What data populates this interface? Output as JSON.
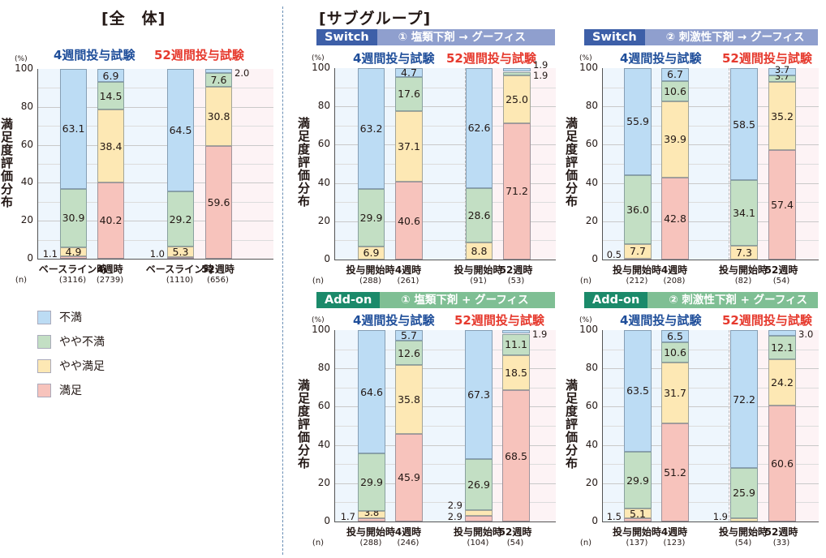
{
  "titles": {
    "overall": "[全　体]",
    "subgroup": "[サブグループ]"
  },
  "colors": {
    "dissatisfied": "#bcdcf4",
    "somewhat_dissatisfied": "#c3dfc4",
    "somewhat_satisfied": "#fde8b4",
    "satisfied": "#f7c3bc",
    "trial4_label": "#1f4e9a",
    "trial52_label": "#e63a2e",
    "switch_tag": "#3d5fa8",
    "switch_bar": "#8f9fce",
    "addon_tag": "#1b8a6a",
    "addon_bar": "#7fbf94"
  },
  "legend": [
    {
      "key": "dissatisfied",
      "label": "不満"
    },
    {
      "key": "somewhat_dissatisfied",
      "label": "やや不満"
    },
    {
      "key": "somewhat_satisfied",
      "label": "やや満足"
    },
    {
      "key": "satisfied",
      "label": "満足"
    }
  ],
  "axis": {
    "unit": "(%)",
    "ylabel": "満足度評価分布",
    "ticks": [
      "100",
      "80",
      "60",
      "40",
      "20",
      "0"
    ],
    "n_label": "(n)"
  },
  "chart_data": [
    {
      "type": "bar",
      "stacked": true,
      "title": "全体",
      "ylabel": "満足度評価分布",
      "ylim": [
        0,
        100
      ],
      "groups": [
        "4週間投与試験",
        "52週間投与試験"
      ],
      "categories": [
        "ベースライン時",
        "4週時",
        "ベースライン時",
        "52週時"
      ],
      "n": [
        "(3116)",
        "(2739)",
        "(1110)",
        "(656)"
      ],
      "series": [
        {
          "name": "満足",
          "values": [
            1.1,
            40.2,
            1.0,
            59.6
          ]
        },
        {
          "name": "やや満足",
          "values": [
            4.9,
            38.4,
            5.3,
            30.8
          ]
        },
        {
          "name": "やや不満",
          "values": [
            30.9,
            14.5,
            29.2,
            7.6
          ]
        },
        {
          "name": "不満",
          "values": [
            63.1,
            6.9,
            64.5,
            2.0
          ]
        }
      ]
    },
    {
      "type": "bar",
      "stacked": true,
      "title": "Switch ① 塩類下剤 → グーフィス",
      "ylabel": "満足度評価分布",
      "ylim": [
        0,
        100
      ],
      "groups": [
        "4週間投与試験",
        "52週間投与試験"
      ],
      "categories": [
        "投与開始時",
        "4週時",
        "投与開始時",
        "52週時"
      ],
      "n": [
        "(288)",
        "(261)",
        "(91)",
        "(53)"
      ],
      "series": [
        {
          "name": "満足",
          "values": [
            0,
            40.6,
            0,
            71.2
          ]
        },
        {
          "name": "やや満足",
          "values": [
            6.9,
            37.1,
            8.8,
            25.0
          ]
        },
        {
          "name": "やや不満",
          "values": [
            29.9,
            17.6,
            28.6,
            1.9
          ]
        },
        {
          "name": "不満",
          "values": [
            63.2,
            4.7,
            62.6,
            1.9
          ]
        }
      ]
    },
    {
      "type": "bar",
      "stacked": true,
      "title": "Switch ② 刺激性下剤 → グーフィス",
      "ylabel": "満足度評価分布",
      "ylim": [
        0,
        100
      ],
      "groups": [
        "4週間投与試験",
        "52週間投与試験"
      ],
      "categories": [
        "投与開始時",
        "4週時",
        "投与開始時",
        "52週時"
      ],
      "n": [
        "(212)",
        "(208)",
        "(82)",
        "(54)"
      ],
      "series": [
        {
          "name": "満足",
          "values": [
            0.5,
            42.8,
            0,
            57.4
          ]
        },
        {
          "name": "やや満足",
          "values": [
            7.7,
            39.9,
            7.3,
            35.2
          ]
        },
        {
          "name": "やや不満",
          "values": [
            36.0,
            10.6,
            34.1,
            3.7
          ]
        },
        {
          "name": "不満",
          "values": [
            55.9,
            6.7,
            58.5,
            3.7
          ]
        }
      ]
    },
    {
      "type": "bar",
      "stacked": true,
      "title": "Add-on ① 塩類下剤 + グーフィス",
      "ylabel": "満足度評価分布",
      "ylim": [
        0,
        100
      ],
      "groups": [
        "4週間投与試験",
        "52週間投与試験"
      ],
      "categories": [
        "投与開始時",
        "4週時",
        "投与開始時",
        "52週時"
      ],
      "n": [
        "(288)",
        "(246)",
        "(104)",
        "(54)"
      ],
      "series": [
        {
          "name": "満足",
          "values": [
            1.7,
            45.9,
            2.9,
            68.5
          ]
        },
        {
          "name": "やや満足",
          "values": [
            3.8,
            35.8,
            2.9,
            18.5
          ]
        },
        {
          "name": "やや不満",
          "values": [
            29.9,
            12.6,
            26.9,
            11.1
          ]
        },
        {
          "name": "不満",
          "values": [
            64.6,
            5.7,
            67.3,
            1.9
          ]
        }
      ]
    },
    {
      "type": "bar",
      "stacked": true,
      "title": "Add-on ② 刺激性下剤 + グーフィス",
      "ylabel": "満足度評価分布",
      "ylim": [
        0,
        100
      ],
      "groups": [
        "4週間投与試験",
        "52週間投与試験"
      ],
      "categories": [
        "投与開始時",
        "4週時",
        "投与開始時",
        "52週時"
      ],
      "n": [
        "(137)",
        "(123)",
        "(54)",
        "(33)"
      ],
      "series": [
        {
          "name": "満足",
          "values": [
            1.5,
            51.2,
            0,
            60.6
          ]
        },
        {
          "name": "やや満足",
          "values": [
            5.1,
            31.7,
            1.9,
            24.2
          ]
        },
        {
          "name": "やや不満",
          "values": [
            29.9,
            10.6,
            25.9,
            12.1
          ]
        },
        {
          "name": "不満",
          "values": [
            63.5,
            6.5,
            72.2,
            3.0
          ]
        }
      ]
    }
  ],
  "panels": [
    {
      "id": "overall",
      "banner": null,
      "trial4": "4週間投与試験",
      "trial52": "52週間投与試験",
      "x": [
        "ベースライン時",
        "4週時",
        "ベースライン時",
        "52週時"
      ],
      "n": [
        "(3116)",
        "(2739)",
        "(1110)",
        "(656)"
      ],
      "bars": [
        {
          "segs": [
            {
              "k": "satisfied",
              "v": 1.1,
              "t": "1.1",
              "out": "left"
            },
            {
              "k": "somewhat_satisfied",
              "v": 4.9,
              "t": "4.9"
            },
            {
              "k": "somewhat_dissatisfied",
              "v": 30.9,
              "t": "30.9"
            },
            {
              "k": "dissatisfied",
              "v": 63.1,
              "t": "63.1"
            }
          ]
        },
        {
          "segs": [
            {
              "k": "satisfied",
              "v": 40.2,
              "t": "40.2"
            },
            {
              "k": "somewhat_satisfied",
              "v": 38.4,
              "t": "38.4"
            },
            {
              "k": "somewhat_dissatisfied",
              "v": 14.5,
              "t": "14.5"
            },
            {
              "k": "dissatisfied",
              "v": 6.9,
              "t": "6.9"
            }
          ]
        },
        {
          "segs": [
            {
              "k": "satisfied",
              "v": 1.0,
              "t": "1.0",
              "out": "left"
            },
            {
              "k": "somewhat_satisfied",
              "v": 5.3,
              "t": "5.3"
            },
            {
              "k": "somewhat_dissatisfied",
              "v": 29.2,
              "t": "29.2"
            },
            {
              "k": "dissatisfied",
              "v": 64.5,
              "t": "64.5"
            }
          ]
        },
        {
          "segs": [
            {
              "k": "satisfied",
              "v": 59.6,
              "t": "59.6"
            },
            {
              "k": "somewhat_satisfied",
              "v": 30.8,
              "t": "30.8"
            },
            {
              "k": "somewhat_dissatisfied",
              "v": 7.6,
              "t": "7.6"
            },
            {
              "k": "dissatisfied",
              "v": 2.0,
              "t": "2.0",
              "out": "right"
            }
          ]
        }
      ]
    },
    {
      "id": "switch1",
      "banner": {
        "tag": "Switch",
        "caption": "① 塩類下剤 → グーフィス",
        "type": "switch"
      },
      "trial4": "4週間投与試験",
      "trial52": "52週間投与試験",
      "x": [
        "投与開始時",
        "4週時",
        "投与開始時",
        "52週時"
      ],
      "n": [
        "(288)",
        "(261)",
        "(91)",
        "(53)"
      ],
      "bars": [
        {
          "segs": [
            {
              "k": "somewhat_satisfied",
              "v": 6.9,
              "t": "6.9"
            },
            {
              "k": "somewhat_dissatisfied",
              "v": 29.9,
              "t": "29.9"
            },
            {
              "k": "dissatisfied",
              "v": 63.2,
              "t": "63.2"
            }
          ]
        },
        {
          "segs": [
            {
              "k": "satisfied",
              "v": 40.6,
              "t": "40.6"
            },
            {
              "k": "somewhat_satisfied",
              "v": 37.1,
              "t": "37.1"
            },
            {
              "k": "somewhat_dissatisfied",
              "v": 17.6,
              "t": "17.6"
            },
            {
              "k": "dissatisfied",
              "v": 4.7,
              "t": "4.7"
            }
          ]
        },
        {
          "segs": [
            {
              "k": "somewhat_satisfied",
              "v": 8.8,
              "t": "8.8"
            },
            {
              "k": "somewhat_dissatisfied",
              "v": 28.6,
              "t": "28.6"
            },
            {
              "k": "dissatisfied",
              "v": 62.6,
              "t": "62.6"
            }
          ]
        },
        {
          "segs": [
            {
              "k": "satisfied",
              "v": 71.2,
              "t": "71.2"
            },
            {
              "k": "somewhat_satisfied",
              "v": 25.0,
              "t": "25.0"
            },
            {
              "k": "somewhat_dissatisfied",
              "v": 1.9,
              "t": "1.9",
              "out": "right"
            },
            {
              "k": "dissatisfied",
              "v": 1.9,
              "t": "1.9",
              "out": "right-up"
            }
          ]
        }
      ]
    },
    {
      "id": "switch2",
      "banner": {
        "tag": "Switch",
        "caption": "② 刺激性下剤 → グーフィス",
        "type": "switch"
      },
      "trial4": "4週間投与試験",
      "trial52": "52週間投与試験",
      "x": [
        "投与開始時",
        "4週時",
        "投与開始時",
        "52週時"
      ],
      "n": [
        "(212)",
        "(208)",
        "(82)",
        "(54)"
      ],
      "bars": [
        {
          "segs": [
            {
              "k": "satisfied",
              "v": 0.5,
              "t": "0.5",
              "out": "left"
            },
            {
              "k": "somewhat_satisfied",
              "v": 7.7,
              "t": "7.7"
            },
            {
              "k": "somewhat_dissatisfied",
              "v": 36.0,
              "t": "36.0"
            },
            {
              "k": "dissatisfied",
              "v": 55.9,
              "t": "55.9"
            }
          ]
        },
        {
          "segs": [
            {
              "k": "satisfied",
              "v": 42.8,
              "t": "42.8"
            },
            {
              "k": "somewhat_satisfied",
              "v": 39.9,
              "t": "39.9"
            },
            {
              "k": "somewhat_dissatisfied",
              "v": 10.6,
              "t": "10.6"
            },
            {
              "k": "dissatisfied",
              "v": 6.7,
              "t": "6.7"
            }
          ]
        },
        {
          "segs": [
            {
              "k": "somewhat_satisfied",
              "v": 7.3,
              "t": "7.3"
            },
            {
              "k": "somewhat_dissatisfied",
              "v": 34.1,
              "t": "34.1"
            },
            {
              "k": "dissatisfied",
              "v": 58.5,
              "t": "58.5"
            }
          ]
        },
        {
          "segs": [
            {
              "k": "satisfied",
              "v": 57.4,
              "t": "57.4"
            },
            {
              "k": "somewhat_satisfied",
              "v": 35.2,
              "t": "35.2"
            },
            {
              "k": "somewhat_dissatisfied",
              "v": 3.7,
              "t": "3.7"
            },
            {
              "k": "dissatisfied",
              "v": 3.7,
              "t": "3.7"
            }
          ]
        }
      ]
    },
    {
      "id": "addon1",
      "banner": {
        "tag": "Add-on",
        "caption": "① 塩類下剤 + グーフィス",
        "type": "addon"
      },
      "trial4": "4週間投与試験",
      "trial52": "52週間投与試験",
      "x": [
        "投与開始時",
        "4週時",
        "投与開始時",
        "52週時"
      ],
      "n": [
        "(288)",
        "(246)",
        "(104)",
        "(54)"
      ],
      "bars": [
        {
          "segs": [
            {
              "k": "satisfied",
              "v": 1.7,
              "t": "1.7",
              "out": "left"
            },
            {
              "k": "somewhat_satisfied",
              "v": 3.8,
              "t": "3.8"
            },
            {
              "k": "somewhat_dissatisfied",
              "v": 29.9,
              "t": "29.9"
            },
            {
              "k": "dissatisfied",
              "v": 64.6,
              "t": "64.6"
            }
          ]
        },
        {
          "segs": [
            {
              "k": "satisfied",
              "v": 45.9,
              "t": "45.9"
            },
            {
              "k": "somewhat_satisfied",
              "v": 35.8,
              "t": "35.8"
            },
            {
              "k": "somewhat_dissatisfied",
              "v": 12.6,
              "t": "12.6"
            },
            {
              "k": "dissatisfied",
              "v": 5.7,
              "t": "5.7"
            }
          ]
        },
        {
          "segs": [
            {
              "k": "satisfied",
              "v": 2.9,
              "t": "2.9",
              "out": "left"
            },
            {
              "k": "somewhat_satisfied",
              "v": 2.9,
              "t": "2.9",
              "out": "left-up"
            },
            {
              "k": "somewhat_dissatisfied",
              "v": 26.9,
              "t": "26.9"
            },
            {
              "k": "dissatisfied",
              "v": 67.3,
              "t": "67.3"
            }
          ]
        },
        {
          "segs": [
            {
              "k": "satisfied",
              "v": 68.5,
              "t": "68.5"
            },
            {
              "k": "somewhat_satisfied",
              "v": 18.5,
              "t": "18.5"
            },
            {
              "k": "somewhat_dissatisfied",
              "v": 11.1,
              "t": "11.1"
            },
            {
              "k": "dissatisfied",
              "v": 1.9,
              "t": "1.9",
              "out": "right"
            }
          ]
        }
      ]
    },
    {
      "id": "addon2",
      "banner": {
        "tag": "Add-on",
        "caption": "② 刺激性下剤 + グーフィス",
        "type": "addon"
      },
      "trial4": "4週間投与試験",
      "trial52": "52週間投与試験",
      "x": [
        "投与開始時",
        "4週時",
        "投与開始時",
        "52週時"
      ],
      "n": [
        "(137)",
        "(123)",
        "(54)",
        "(33)"
      ],
      "bars": [
        {
          "segs": [
            {
              "k": "satisfied",
              "v": 1.5,
              "t": "1.5",
              "out": "left"
            },
            {
              "k": "somewhat_satisfied",
              "v": 5.1,
              "t": "5.1"
            },
            {
              "k": "somewhat_dissatisfied",
              "v": 29.9,
              "t": "29.9"
            },
            {
              "k": "dissatisfied",
              "v": 63.5,
              "t": "63.5"
            }
          ]
        },
        {
          "segs": [
            {
              "k": "satisfied",
              "v": 51.2,
              "t": "51.2"
            },
            {
              "k": "somewhat_satisfied",
              "v": 31.7,
              "t": "31.7"
            },
            {
              "k": "somewhat_dissatisfied",
              "v": 10.6,
              "t": "10.6"
            },
            {
              "k": "dissatisfied",
              "v": 6.5,
              "t": "6.5"
            }
          ]
        },
        {
          "segs": [
            {
              "k": "somewhat_satisfied",
              "v": 1.9,
              "t": "1.9",
              "out": "left"
            },
            {
              "k": "somewhat_dissatisfied",
              "v": 25.9,
              "t": "25.9"
            },
            {
              "k": "dissatisfied",
              "v": 72.2,
              "t": "72.2"
            }
          ]
        },
        {
          "segs": [
            {
              "k": "satisfied",
              "v": 60.6,
              "t": "60.6"
            },
            {
              "k": "somewhat_satisfied",
              "v": 24.2,
              "t": "24.2"
            },
            {
              "k": "somewhat_dissatisfied",
              "v": 12.1,
              "t": "12.1"
            },
            {
              "k": "dissatisfied",
              "v": 3.0,
              "t": "3.0",
              "out": "right"
            }
          ]
        }
      ]
    }
  ]
}
